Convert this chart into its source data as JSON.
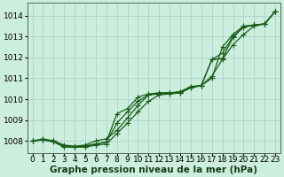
{
  "xlabel": "Graphe pression niveau de la mer (hPa)",
  "background_color": "#cceedd",
  "grid_color": "#aacccc",
  "line_color": "#1a5e1a",
  "ylim": [
    1007.4,
    1014.6
  ],
  "xlim": [
    -0.5,
    23.5
  ],
  "yticks": [
    1008,
    1009,
    1010,
    1011,
    1012,
    1013,
    1014
  ],
  "xticks": [
    0,
    1,
    2,
    3,
    4,
    5,
    6,
    7,
    8,
    9,
    10,
    11,
    12,
    13,
    14,
    15,
    16,
    17,
    18,
    19,
    20,
    21,
    22,
    23
  ],
  "tick_fontsize": 6.5,
  "xlabel_fontsize": 7.5,
  "marker": "+",
  "markersize": 4,
  "linewidth": 0.9,
  "series": [
    {
      "x": [
        0,
        1,
        2,
        3,
        4,
        5,
        6,
        7,
        8,
        9,
        10,
        11,
        12,
        13,
        14,
        15,
        16,
        17,
        18,
        19,
        20,
        21,
        22,
        23
      ],
      "y": [
        1008.0,
        1008.1,
        1008.0,
        1007.8,
        1007.75,
        1007.8,
        1008.0,
        1008.1,
        1008.5,
        1009.1,
        1009.7,
        1010.2,
        1010.3,
        1010.3,
        1010.3,
        1010.55,
        1010.65,
        1011.0,
        1012.5,
        1013.1,
        1013.5,
        1013.55,
        1013.6,
        1014.2
      ]
    },
    {
      "x": [
        0,
        1,
        2,
        3,
        4,
        5,
        6,
        7,
        8,
        9,
        10,
        11,
        12,
        13,
        14,
        15,
        16,
        17,
        18,
        19,
        20,
        21,
        22,
        23
      ],
      "y": [
        1008.0,
        1008.05,
        1008.0,
        1007.75,
        1007.7,
        1007.75,
        1007.85,
        1007.95,
        1009.3,
        1009.55,
        1010.1,
        1010.25,
        1010.3,
        1010.3,
        1010.35,
        1010.6,
        1010.65,
        1011.1,
        1011.9,
        1012.6,
        1013.1,
        1013.5,
        1013.6,
        1014.2
      ]
    },
    {
      "x": [
        0,
        1,
        2,
        3,
        4,
        5,
        6,
        7,
        8,
        9,
        10,
        11,
        12,
        13,
        14,
        15,
        16,
        17,
        18,
        19,
        20,
        21,
        22,
        23
      ],
      "y": [
        1008.0,
        1008.05,
        1008.0,
        1007.75,
        1007.7,
        1007.75,
        1007.85,
        1007.95,
        1008.85,
        1009.4,
        1009.9,
        1010.2,
        1010.25,
        1010.3,
        1010.35,
        1010.6,
        1010.65,
        1011.9,
        1012.2,
        1013.0,
        1013.45,
        1013.55,
        1013.6,
        1014.2
      ]
    },
    {
      "x": [
        0,
        1,
        2,
        3,
        4,
        5,
        6,
        7,
        8,
        9,
        10,
        11,
        12,
        13,
        14,
        15,
        16,
        17,
        18,
        19,
        20,
        21,
        22,
        23
      ],
      "y": [
        1008.0,
        1008.05,
        1007.95,
        1007.7,
        1007.7,
        1007.7,
        1007.8,
        1007.85,
        1008.35,
        1008.85,
        1009.4,
        1009.9,
        1010.2,
        1010.25,
        1010.3,
        1010.55,
        1010.65,
        1011.9,
        1011.95,
        1012.95,
        1013.45,
        1013.55,
        1013.6,
        1014.2
      ]
    }
  ]
}
